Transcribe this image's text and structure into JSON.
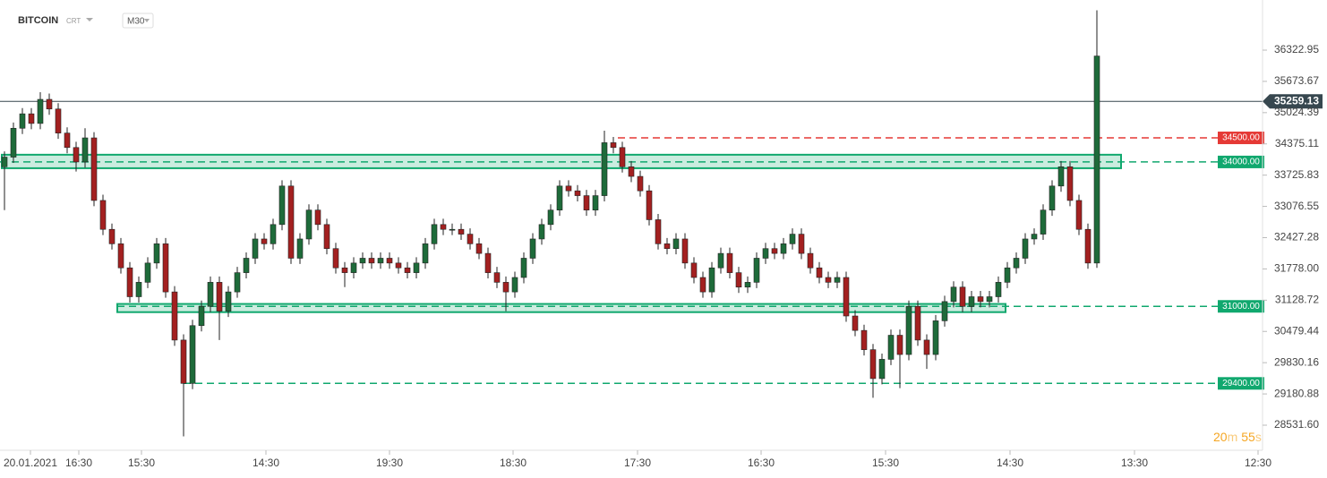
{
  "chart_data": {
    "type": "candlestick",
    "title": "BITCOIN",
    "subtitle": "CRT",
    "timeframe": "M30",
    "up_color": "#1e6b3a",
    "down_color": "#a32020",
    "open": [
      33900,
      34100,
      34700,
      35000,
      34800,
      35300,
      35100,
      34600,
      34300,
      34000,
      34500,
      33200,
      32600,
      32300,
      31800,
      31200,
      31500,
      31900,
      32300,
      31300,
      30300,
      29400,
      30600,
      31000,
      31500,
      30900,
      31300,
      31700,
      32000,
      32400,
      32300,
      32700,
      33500,
      32000,
      32400,
      33000,
      32700,
      32200,
      31800,
      31700,
      31900,
      32000,
      31900,
      32000,
      31900,
      31800,
      31700,
      31900,
      32300,
      32700,
      32600,
      32600,
      32500,
      32300,
      32100,
      31700,
      31500,
      31300,
      31600,
      32000,
      32400,
      32700,
      33000,
      33500,
      33400,
      33300,
      33000,
      33300,
      34400,
      34300,
      33900,
      33700,
      33400,
      32800,
      32300,
      32200,
      32400,
      31900,
      31600,
      31300,
      31800,
      32100,
      31700,
      31400,
      31500,
      32000,
      32200,
      32100,
      32300,
      32500,
      32100,
      31800,
      31600,
      31500,
      31600,
      30800,
      30500,
      30100,
      29500,
      29900,
      30400,
      30000,
      31000,
      30300,
      30000,
      30700,
      31100,
      31400,
      31000,
      31200,
      31100,
      31200,
      31500,
      31800,
      32000,
      32400,
      32500,
      33000,
      33500,
      33900,
      33200,
      32600,
      31900
    ],
    "high": [
      34220,
      34820,
      35120,
      35120,
      35450,
      35420,
      35220,
      34720,
      34420,
      34700,
      34620,
      33320,
      32720,
      32420,
      31920,
      31620,
      32020,
      32420,
      32420,
      31420,
      30420,
      30720,
      31120,
      31620,
      31620,
      31420,
      31820,
      32120,
      32520,
      32520,
      32820,
      33620,
      33620,
      32520,
      33120,
      33120,
      32820,
      32320,
      31920,
      32020,
      32120,
      32120,
      32120,
      32120,
      32020,
      31920,
      32020,
      32420,
      32820,
      32820,
      32720,
      32720,
      32620,
      32420,
      32220,
      31820,
      31620,
      31720,
      32120,
      32520,
      32820,
      33120,
      33620,
      33620,
      33520,
      33420,
      33420,
      34650,
      34520,
      34420,
      34020,
      33820,
      33520,
      32920,
      32420,
      32520,
      32520,
      32020,
      31720,
      31920,
      32220,
      32220,
      31820,
      31620,
      32120,
      32320,
      32320,
      32420,
      32620,
      32620,
      32220,
      31920,
      31720,
      31720,
      31720,
      30920,
      30620,
      30220,
      30020,
      30520,
      30520,
      31120,
      31120,
      30420,
      30820,
      31220,
      31520,
      31520,
      31320,
      31320,
      31320,
      31620,
      31920,
      32120,
      32520,
      32620,
      33120,
      33620,
      34020,
      34020,
      33320,
      32720,
      37150
    ],
    "low": [
      33000,
      33980,
      34580,
      34680,
      34680,
      34980,
      34480,
      34180,
      33800,
      33880,
      33080,
      32480,
      32180,
      31680,
      31080,
      31080,
      31380,
      31780,
      31180,
      30180,
      28300,
      29280,
      30480,
      30880,
      30300,
      30780,
      31180,
      31580,
      31880,
      32180,
      32180,
      32580,
      31880,
      31880,
      32280,
      32580,
      32080,
      31680,
      31400,
      31580,
      31780,
      31780,
      31780,
      31780,
      31680,
      31580,
      31580,
      31780,
      32180,
      32480,
      32480,
      32380,
      32180,
      31980,
      31580,
      31380,
      30900,
      31180,
      31480,
      31880,
      32280,
      32580,
      32880,
      33280,
      33180,
      32880,
      32880,
      33180,
      34180,
      33780,
      33580,
      33280,
      32680,
      32180,
      32080,
      32080,
      31780,
      31480,
      31180,
      31180,
      31680,
      31580,
      31280,
      31280,
      31380,
      31880,
      31980,
      31980,
      32180,
      31980,
      31680,
      31480,
      31380,
      31380,
      30680,
      30380,
      29980,
      29100,
      29380,
      29780,
      29300,
      29880,
      30180,
      29700,
      29880,
      30580,
      30980,
      30880,
      30880,
      30980,
      30980,
      31080,
      31380,
      31680,
      31880,
      32280,
      32380,
      32880,
      33380,
      33080,
      32480,
      31780,
      31800
    ],
    "close": [
      34100,
      34700,
      35000,
      34800,
      35300,
      35100,
      34600,
      34300,
      34000,
      34500,
      33200,
      32600,
      32300,
      31800,
      31200,
      31500,
      31900,
      32300,
      31300,
      30300,
      29400,
      30600,
      31000,
      31500,
      30900,
      31300,
      31700,
      32000,
      32400,
      32300,
      32700,
      33500,
      32000,
      32400,
      33000,
      32700,
      32200,
      31800,
      31700,
      31900,
      32000,
      31900,
      32000,
      31900,
      31800,
      31700,
      31900,
      32300,
      32700,
      32600,
      32600,
      32500,
      32300,
      32100,
      31700,
      31500,
      31300,
      31600,
      32000,
      32400,
      32700,
      33000,
      33500,
      33400,
      33300,
      33000,
      33300,
      34400,
      34300,
      33900,
      33700,
      33400,
      32800,
      32300,
      32200,
      32400,
      31900,
      31600,
      31300,
      31800,
      32100,
      31700,
      31400,
      31500,
      32000,
      32200,
      32100,
      32300,
      32500,
      32100,
      31800,
      31600,
      31500,
      31600,
      30800,
      30500,
      30100,
      29500,
      29900,
      30400,
      30000,
      31000,
      30300,
      30000,
      30700,
      31100,
      31400,
      31000,
      31200,
      31100,
      31200,
      31500,
      31800,
      32000,
      32400,
      32500,
      33000,
      33500,
      33900,
      33200,
      32600,
      31900,
      36200
    ],
    "xlim": [
      -0.5,
      140.5
    ],
    "xticks": [
      {
        "value": 2.9,
        "label": "20.01.2021"
      },
      {
        "value": 8.3,
        "label": "16:30"
      },
      {
        "value": 15.3,
        "label": "15:30"
      },
      {
        "value": 29.2,
        "label": "14:30"
      },
      {
        "value": 43,
        "label": "19:30"
      },
      {
        "value": 56.8,
        "label": "18:30"
      },
      {
        "value": 70.7,
        "label": "17:30"
      },
      {
        "value": 84.5,
        "label": "16:30"
      },
      {
        "value": 98.4,
        "label": "15:30"
      },
      {
        "value": 112.3,
        "label": "14:30"
      },
      {
        "value": 126.2,
        "label": "13:30"
      },
      {
        "value": 140,
        "label": "12:30"
      }
    ],
    "ylim": [
      28066.7,
      37364.2
    ],
    "yticks": [
      36322.95,
      35673.67,
      35024.39,
      34375.11,
      33725.83,
      33076.55,
      32427.28,
      {
        "value": 31778,
        "label": "31778.00"
      },
      31128.72,
      30479.44,
      29830.16,
      29180.88,
      {
        "value": 28531.6,
        "label": "28531.60"
      }
    ],
    "current_price": {
      "value": 35259.13,
      "color": "#37474f"
    },
    "levels": [
      {
        "value": 34500,
        "label": "34500.00",
        "color": "#e53935"
      },
      {
        "value": 34000,
        "label": "34000.00",
        "color": "#10a86e"
      },
      {
        "value": 31000,
        "label": "31000.00",
        "color": "#10a86e"
      },
      {
        "value": 29400,
        "label": "29400.00",
        "color": "#10a86e"
      }
    ],
    "zones": [
      {
        "low": 33870,
        "high": 34150,
        "color": "#10a86e"
      },
      {
        "low": 30880,
        "high": 31050,
        "color": "#10a86e"
      }
    ],
    "timer": {
      "minutes": "20",
      "minutes_unit": "m",
      "seconds": "55",
      "seconds_unit": "s",
      "color": "#f5a623"
    }
  }
}
